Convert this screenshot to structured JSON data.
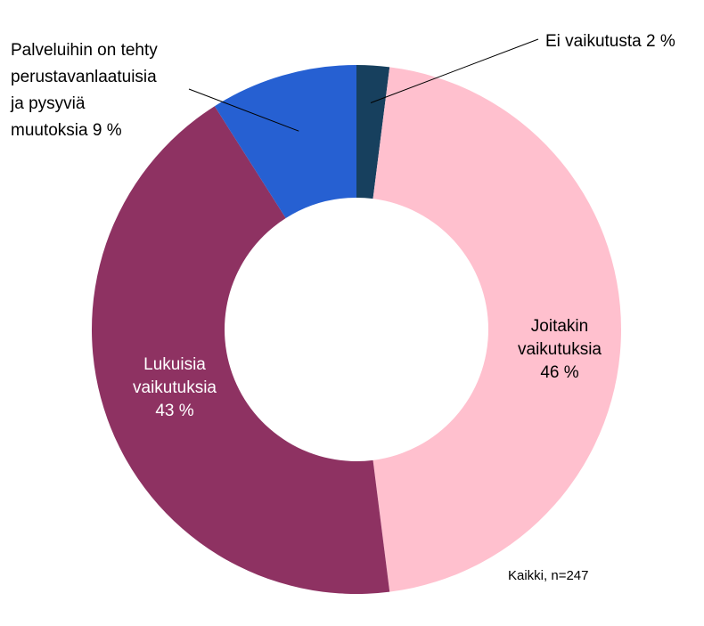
{
  "chart_data": {
    "type": "pie",
    "donut": true,
    "note": "Kaikki, n=247",
    "slices": [
      {
        "label_lines": [
          "Ei vaikutusta 2 %"
        ],
        "value": 2,
        "color": "#17405e",
        "label_color": "#000000"
      },
      {
        "label_lines": [
          "Joitakin",
          "vaikutuksia",
          "46 %"
        ],
        "value": 46,
        "color": "#ffc0ce",
        "label_color": "#000000"
      },
      {
        "label_lines": [
          "Lukuisia",
          "vaikutuksia",
          "43 %"
        ],
        "value": 43,
        "color": "#8e3262",
        "label_color": "#ffffff"
      },
      {
        "label_lines": [
          "Palveluihin on tehty",
          "perustavanlaatuisia",
          "ja pysyviä",
          "muutoksia 9 %"
        ],
        "value": 9,
        "color": "#2660d2",
        "label_color": "#000000"
      }
    ]
  }
}
